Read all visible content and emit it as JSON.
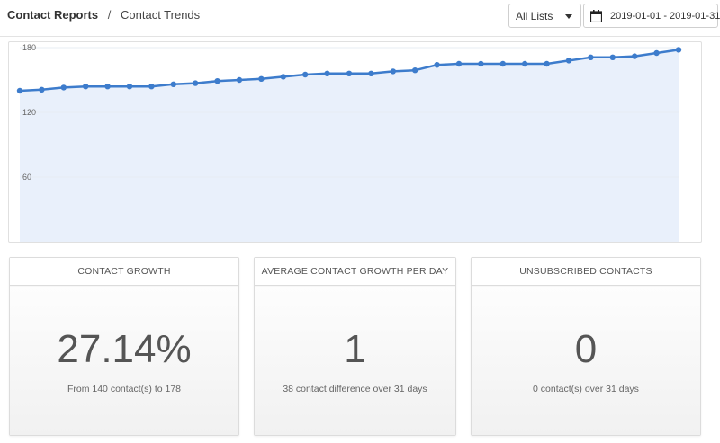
{
  "breadcrumb": {
    "root": "Contact Reports",
    "separator": "/",
    "current": "Contact Trends"
  },
  "list_filter": {
    "selected": "All Lists"
  },
  "date_range": {
    "value": "2019-01-01 - 2019-01-31",
    "icon": "calendar-icon"
  },
  "chart_data": {
    "type": "area",
    "title": "",
    "xlabel": "",
    "ylabel": "",
    "y_ticks": [
      60,
      120,
      180
    ],
    "ylim": [
      0,
      185
    ],
    "x": [
      1,
      2,
      3,
      4,
      5,
      6,
      7,
      8,
      9,
      10,
      11,
      12,
      13,
      14,
      15,
      16,
      17,
      18,
      19,
      20,
      21,
      22,
      23,
      24,
      25,
      26,
      27,
      28,
      29,
      30,
      31
    ],
    "values": [
      140,
      141,
      143,
      144,
      144,
      144,
      144,
      146,
      147,
      149,
      150,
      151,
      153,
      155,
      156,
      156,
      156,
      158,
      159,
      164,
      165,
      165,
      165,
      165,
      165,
      168,
      171,
      171,
      172,
      175,
      178
    ],
    "grid": true,
    "colors": {
      "line": "#3d7ccc",
      "fill": "#e9f0fb",
      "grid": "#e7ecf3"
    }
  },
  "cards": [
    {
      "title": "CONTACT GROWTH",
      "value": "27.14%",
      "subtitle": "From 140 contact(s) to 178"
    },
    {
      "title": "AVERAGE CONTACT GROWTH PER DAY",
      "value": "1",
      "subtitle": "38 contact difference over 31 days"
    },
    {
      "title": "UNSUBSCRIBED CONTACTS",
      "value": "0",
      "subtitle": "0 contact(s) over 31 days"
    }
  ]
}
